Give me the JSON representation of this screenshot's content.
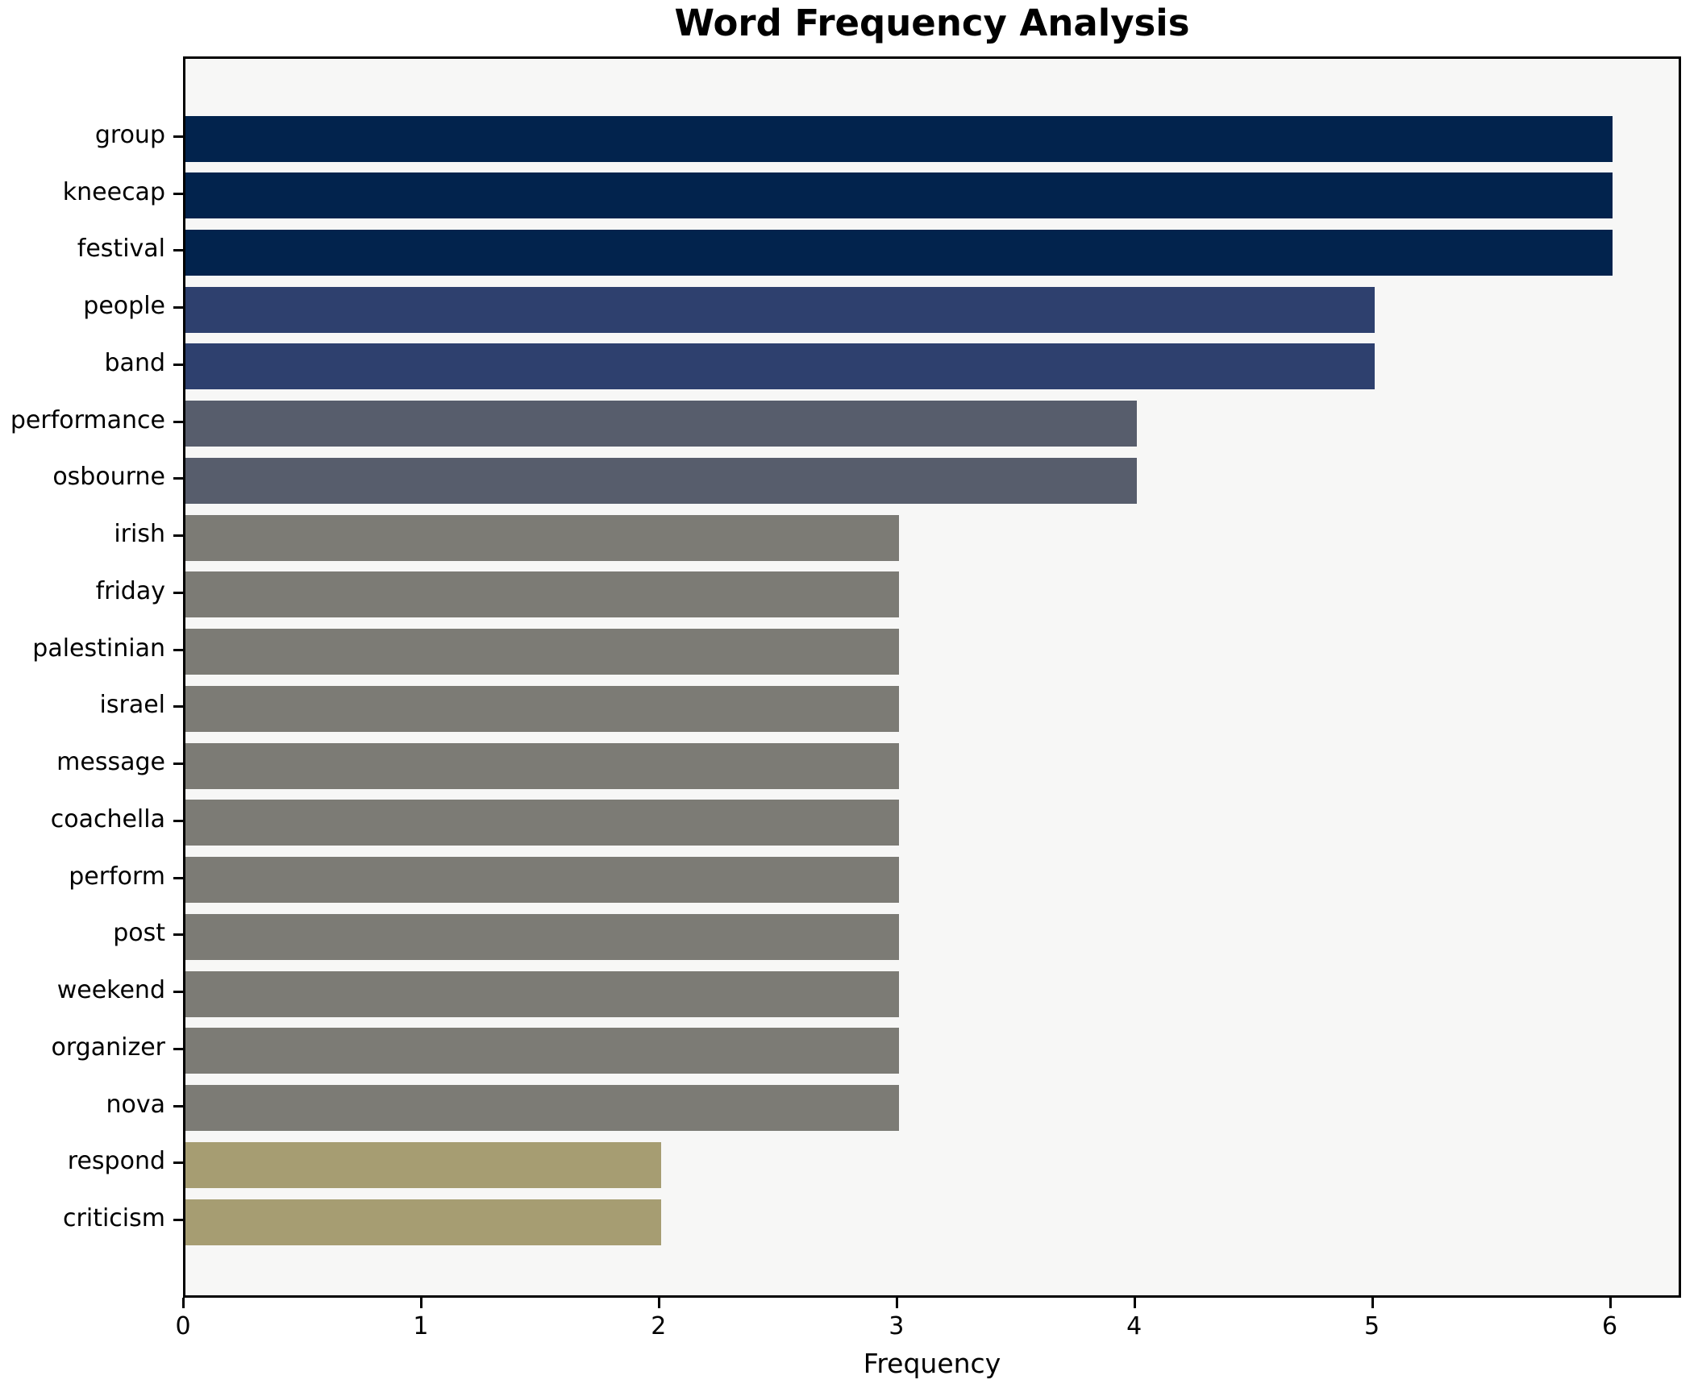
{
  "chart_data": {
    "type": "bar",
    "orientation": "horizontal",
    "title": "Word Frequency Analysis",
    "xlabel": "Frequency",
    "ylabel": "",
    "grid": false,
    "legend": null,
    "xlim": [
      0,
      6.3
    ],
    "x_ticks": [
      0,
      1,
      2,
      3,
      4,
      5,
      6
    ],
    "categories": [
      "group",
      "kneecap",
      "festival",
      "people",
      "band",
      "performance",
      "osbourne",
      "irish",
      "friday",
      "palestinian",
      "israel",
      "message",
      "coachella",
      "perform",
      "post",
      "weekend",
      "organizer",
      "nova",
      "respond",
      "criticism"
    ],
    "values": [
      6,
      6,
      6,
      5,
      5,
      4,
      4,
      3,
      3,
      3,
      3,
      3,
      3,
      3,
      3,
      3,
      3,
      3,
      2,
      2
    ],
    "bar_colors": [
      "#02234d",
      "#02234d",
      "#02234d",
      "#2e406e",
      "#2e406e",
      "#575d6c",
      "#575d6c",
      "#7c7b75",
      "#7c7b75",
      "#7c7b75",
      "#7c7b75",
      "#7c7b75",
      "#7c7b75",
      "#7c7b75",
      "#7c7b75",
      "#7c7b75",
      "#7c7b75",
      "#7c7b75",
      "#a69d72",
      "#a69d72"
    ],
    "value_color_map": {
      "6": "#02234d",
      "5": "#2e406e",
      "4": "#575d6c",
      "3": "#7c7b75",
      "2": "#a69d72"
    },
    "plot_background": "#f7f7f6",
    "figure_background": "#ffffff",
    "axis_color": "#000000"
  }
}
